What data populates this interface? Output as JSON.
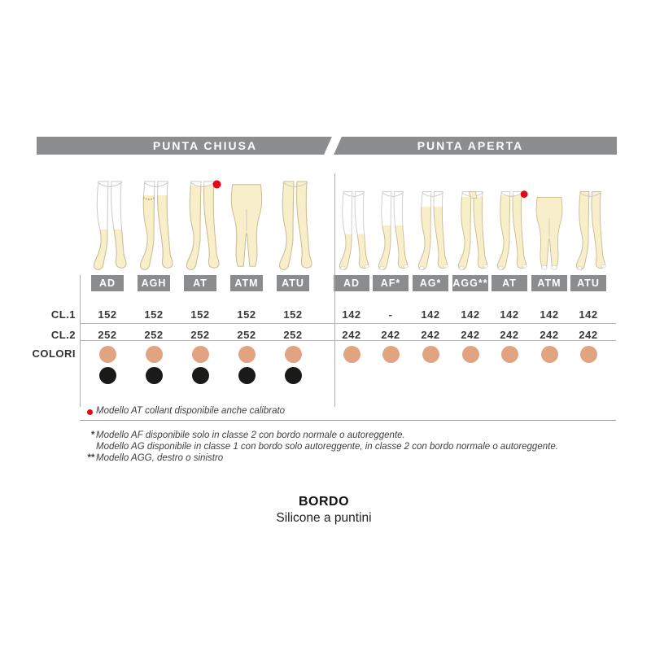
{
  "page": {
    "bands": [
      {
        "label": "PUNTA CHIUSA"
      },
      {
        "label": "PUNTA APERTA"
      }
    ],
    "row_labels": {
      "cl1": "CL.1",
      "cl2": "CL.2",
      "colori": "COLORI"
    },
    "sections": [
      {
        "name": "punta-chiusa",
        "columns": [
          {
            "model": "AD",
            "cl1": "152",
            "cl2": "252",
            "dots": [
              "beige",
              "black"
            ],
            "fig": "ad",
            "open_toe": false,
            "red_dot": false
          },
          {
            "model": "AGH",
            "cl1": "152",
            "cl2": "252",
            "dots": [
              "beige",
              "black"
            ],
            "fig": "agh",
            "open_toe": false,
            "red_dot": false
          },
          {
            "model": "AT",
            "cl1": "152",
            "cl2": "252",
            "dots": [
              "beige",
              "black"
            ],
            "fig": "at",
            "open_toe": false,
            "red_dot": true
          },
          {
            "model": "ATM",
            "cl1": "152",
            "cl2": "252",
            "dots": [
              "beige",
              "black"
            ],
            "fig": "atm",
            "open_toe": false,
            "red_dot": false
          },
          {
            "model": "ATU",
            "cl1": "152",
            "cl2": "252",
            "dots": [
              "beige",
              "black"
            ],
            "fig": "atu",
            "open_toe": false,
            "red_dot": false
          }
        ]
      },
      {
        "name": "punta-aperta",
        "columns": [
          {
            "model": "AD",
            "cl1": "142",
            "cl2": "242",
            "dots": [
              "beige"
            ],
            "fig": "ad",
            "open_toe": true,
            "red_dot": false
          },
          {
            "model": "AF*",
            "cl1": "-",
            "cl2": "242",
            "dots": [
              "beige"
            ],
            "fig": "af",
            "open_toe": true,
            "red_dot": false
          },
          {
            "model": "AG*",
            "cl1": "142",
            "cl2": "242",
            "dots": [
              "beige"
            ],
            "fig": "ag",
            "open_toe": true,
            "red_dot": false
          },
          {
            "model": "AGG**",
            "cl1": "142",
            "cl2": "242",
            "dots": [
              "beige"
            ],
            "fig": "agg",
            "open_toe": true,
            "red_dot": false
          },
          {
            "model": "AT",
            "cl1": "142",
            "cl2": "242",
            "dots": [
              "beige"
            ],
            "fig": "at",
            "open_toe": true,
            "red_dot": true
          },
          {
            "model": "ATM",
            "cl1": "142",
            "cl2": "242",
            "dots": [
              "beige"
            ],
            "fig": "atm",
            "open_toe": true,
            "red_dot": false
          },
          {
            "model": "ATU",
            "cl1": "142",
            "cl2": "242",
            "dots": [
              "beige"
            ],
            "fig": "atu",
            "open_toe": true,
            "red_dot": false
          }
        ]
      }
    ],
    "table_footnote": {
      "marker": "red-dot",
      "text": "Modello AT collant disponibile anche calibrato"
    },
    "footnotes": [
      {
        "marker": "*",
        "text": "Modello AF disponibile solo in classe 2 con bordo normale o autoreggente."
      },
      {
        "marker": "",
        "text": "Modello AG disponibile in classe 1 con bordo solo autoreggente, in classe 2 con bordo normale o autoreggente."
      },
      {
        "marker": "**",
        "text": "Modello AGG, destro o sinistro"
      }
    ],
    "bordo": {
      "title": "BORDO",
      "subtitle": "Silicone a puntini"
    },
    "colors": {
      "band_gray": "#8b8d8f",
      "header_gray": "#8a8c8e",
      "beige_dot": "#e2a380",
      "black_dot": "#1a1a18",
      "red": "#e30613",
      "leg_fill": "#f8efca",
      "leg_stroke": "#cbbd8f",
      "skin_stroke": "#c9c9c9"
    }
  }
}
